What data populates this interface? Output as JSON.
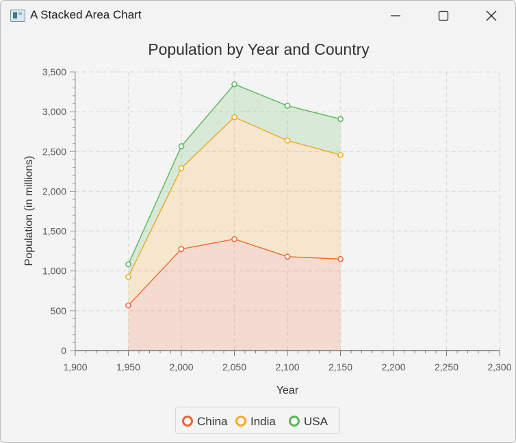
{
  "window": {
    "title": "A Stacked Area Chart"
  },
  "chart_data": {
    "type": "area",
    "stacked": true,
    "title": "Population by Year and Country",
    "xlabel": "Year",
    "ylabel": "Population (in millions)",
    "xlim": [
      1900,
      2300
    ],
    "ylim": [
      0,
      3500
    ],
    "x_ticks": [
      "1,900",
      "1,950",
      "2,000",
      "2,050",
      "2,100",
      "2,150",
      "2,200",
      "2,250",
      "2,300"
    ],
    "y_ticks": [
      "0",
      "500",
      "1,000",
      "1,500",
      "2,000",
      "2,500",
      "3,000",
      "3,500"
    ],
    "x": [
      1950,
      2000,
      2050,
      2100,
      2150
    ],
    "series": [
      {
        "name": "China",
        "color": "#f3622d",
        "values": [
          567,
          1275,
          1400,
          1180,
          1150
        ]
      },
      {
        "name": "India",
        "color": "#fba71b",
        "values": [
          358,
          1017,
          1531,
          1458,
          1308
        ]
      },
      {
        "name": "USA",
        "color": "#57b757",
        "values": [
          158,
          275,
          414,
          437,
          450
        ]
      }
    ],
    "grid": true,
    "legend_position": "bottom"
  }
}
